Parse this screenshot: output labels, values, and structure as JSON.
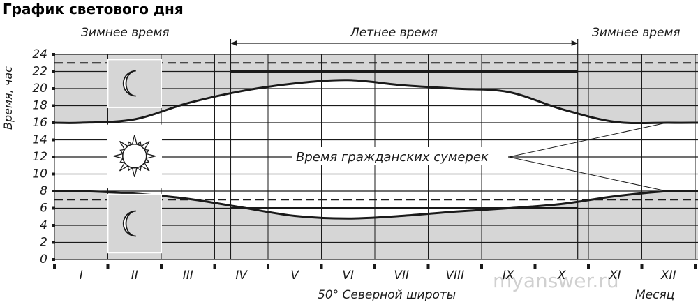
{
  "chart_data": {
    "type": "line",
    "title": "График светового дня",
    "ylabel": "Время, час",
    "xlabel": "50° Северной широты",
    "x_axis_caption": "Месяц",
    "ylim": [
      0,
      24
    ],
    "y_ticks": [
      0,
      2,
      4,
      6,
      8,
      10,
      12,
      14,
      16,
      18,
      20,
      22,
      24
    ],
    "categories": [
      "I",
      "II",
      "III",
      "IV",
      "V",
      "VI",
      "VII",
      "VIII",
      "IX",
      "X",
      "XI",
      "XII"
    ],
    "period_labels": {
      "winter_left": "Зимнее время",
      "summer": "Летнее время",
      "winter_right": "Зимнее время"
    },
    "annotation": "Время гражданских сумерек",
    "watermark": "myanswer.ru",
    "series": [
      {
        "values": [
          16.0,
          16.4,
          18.3,
          19.7,
          20.6,
          21.0,
          20.4,
          20.0,
          19.6,
          17.6,
          16.1,
          16.0
        ]
      },
      {
        "values": [
          8.0,
          7.7,
          7.1,
          6.1,
          5.1,
          4.8,
          5.1,
          5.6,
          6.0,
          6.5,
          7.4,
          8.0
        ]
      }
    ],
    "reference_lines": {
      "dashed": [
        23.0,
        7.0
      ],
      "summer_bar_top": 22.0,
      "summer_bar_bottom": 6.0
    },
    "colors": {
      "shade": "#d6d6d6",
      "line": "#1a1a1a",
      "grid": "#1a1a1a"
    },
    "icons": [
      "moon-icon",
      "sun-icon",
      "moon-icon"
    ]
  }
}
